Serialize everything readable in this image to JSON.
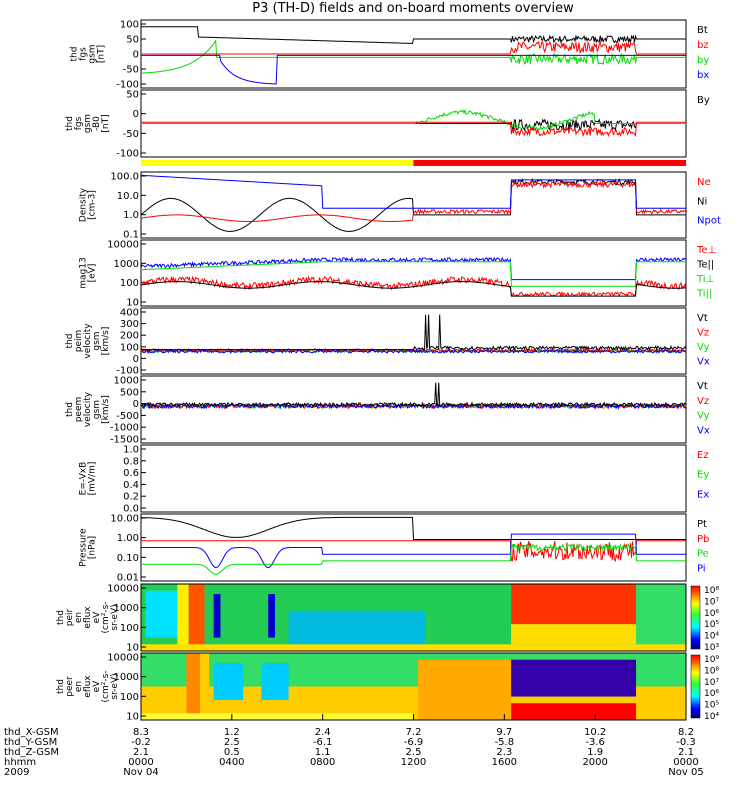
{
  "title": "P3 (TH-D) fields and on-board moments overview",
  "colors": {
    "black": "#000000",
    "red": "#ff0000",
    "green": "#00dd00",
    "blue": "#0000ff",
    "light_green": "#33ff33",
    "yellow": "#ffff00"
  },
  "chart_data": {
    "type": "line",
    "x_axis": {
      "rows": [
        {
          "label": "thd_X-GSM",
          "values": [
            "8.3",
            "1.2",
            "2.4",
            "7.2",
            "9.7",
            "10.2",
            "8.2"
          ]
        },
        {
          "label": "thd_Y-GSM",
          "values": [
            "-0.2",
            "2.5",
            "-6.1",
            "-6.9",
            "-5.8",
            "-3.6",
            "-0.3"
          ]
        },
        {
          "label": "thd_Z-GSM",
          "values": [
            "2.1",
            "0.5",
            "1.1",
            "2.5",
            "2.3",
            "1.9",
            "2.1"
          ]
        },
        {
          "label": "hhmm",
          "values": [
            "0000",
            "0400",
            "0800",
            "1200",
            "1600",
            "2000",
            "0000"
          ]
        },
        {
          "label": "2009",
          "values": [
            "Nov 04",
            "",
            "",
            "",
            "",
            "",
            "Nov 05"
          ]
        }
      ],
      "hours": [
        0,
        4,
        8,
        12,
        16,
        20,
        24
      ]
    },
    "panels": [
      {
        "id": "fgs",
        "ylabel": [
          "thd",
          "fgs",
          "gsm",
          "[nT]"
        ],
        "yticks": [
          "100",
          "50",
          "0",
          "-50",
          "-100"
        ],
        "legend": [
          {
            "name": "Bt",
            "color": "#000000"
          },
          {
            "name": "bz",
            "color": "#ff0000"
          },
          {
            "name": "by",
            "color": "#00dd00"
          },
          {
            "name": "bx",
            "color": "#0000ff"
          }
        ]
      },
      {
        "id": "fgs_mag",
        "ylabel": [
          "thd",
          "fgs",
          "gsm",
          "-B0",
          "[nT]"
        ],
        "yticks": [
          "50",
          "0",
          "-50",
          "-100"
        ],
        "legend": [
          {
            "name": "By",
            "color": "#000000"
          }
        ]
      },
      {
        "id": "density",
        "ylabel": [
          "Density",
          "[cm-3]"
        ],
        "yticks": [
          "100.0",
          "10.0",
          "1.0",
          "0.1"
        ],
        "legend": [
          {
            "name": "Ne",
            "color": "#ff0000"
          },
          {
            "name": "Ni",
            "color": "#000000"
          },
          {
            "name": "Npot",
            "color": "#0000ff"
          }
        ]
      },
      {
        "id": "temperature",
        "ylabel": [
          "mag13",
          "[eV]"
        ],
        "yticks": [
          "10000",
          "1000",
          "100",
          "10"
        ],
        "legend": [
          {
            "name": "Te⊥",
            "color": "#ff0000"
          },
          {
            "name": "Te||",
            "color": "#000000"
          },
          {
            "name": "Ti⊥",
            "color": "#00dd00"
          },
          {
            "name": "Ti||",
            "color": "#00dd00"
          }
        ]
      },
      {
        "id": "peim",
        "ylabel": [
          "thd",
          "peim",
          "velocity",
          "gsm",
          "[km/s]"
        ],
        "yticks": [
          "400",
          "300",
          "200",
          "100",
          "0",
          "-100"
        ],
        "legend": [
          {
            "name": "Vt",
            "color": "#000000"
          },
          {
            "name": "Vz",
            "color": "#ff0000"
          },
          {
            "name": "Vy",
            "color": "#00dd00"
          },
          {
            "name": "Vx",
            "color": "#0000ff"
          }
        ]
      },
      {
        "id": "peem",
        "ylabel": [
          "thd",
          "peem",
          "velocity",
          "gsm",
          "[km/s]"
        ],
        "yticks": [
          "1000",
          "500",
          "0",
          "-500",
          "-1000",
          "-1500"
        ],
        "legend": [
          {
            "name": "Vt",
            "color": "#000000"
          },
          {
            "name": "Vz",
            "color": "#ff0000"
          },
          {
            "name": "Vy",
            "color": "#00dd00"
          },
          {
            "name": "Vx",
            "color": "#0000ff"
          }
        ]
      },
      {
        "id": "efield",
        "ylabel": [
          "E=-VxB",
          "[mV/m]"
        ],
        "yticks": [
          "1.0",
          "0.8",
          "0.6",
          "0.4",
          "0.2",
          "0.0"
        ],
        "legend": [
          {
            "name": "Ez",
            "color": "#ff0000"
          },
          {
            "name": "Ey",
            "color": "#00dd00"
          },
          {
            "name": "Ex",
            "color": "#0000ff"
          }
        ]
      },
      {
        "id": "pressure",
        "ylabel": [
          "Pressure",
          "[nPa]"
        ],
        "yticks": [
          "10.00",
          "1.00",
          "0.10",
          "0.01"
        ],
        "legend": [
          {
            "name": "Pt",
            "color": "#000000"
          },
          {
            "name": "Pb",
            "color": "#ff0000"
          },
          {
            "name": "Pe",
            "color": "#00dd00"
          },
          {
            "name": "Pi",
            "color": "#0000ff"
          }
        ]
      },
      {
        "id": "peir_spec",
        "ylabel": [
          "thd",
          "peir",
          "en",
          "eflux",
          "eV",
          "(cm²-s-",
          "sr-eV)"
        ],
        "yticks": [
          "10000",
          "1000",
          "100",
          "10"
        ],
        "colorbar": [
          "10⁸",
          "10⁷",
          "10⁶",
          "10⁵",
          "10⁴",
          "10³"
        ]
      },
      {
        "id": "peer_spec",
        "ylabel": [
          "thd",
          "peer",
          "en",
          "eflux",
          "eV",
          "(cm²-s-",
          "sr-eV)"
        ],
        "yticks": [
          "10000",
          "1000",
          "100",
          "10"
        ],
        "colorbar": [
          "10⁹",
          "10⁸",
          "10⁷",
          "10⁶",
          "10⁵",
          "10⁴"
        ]
      }
    ]
  }
}
